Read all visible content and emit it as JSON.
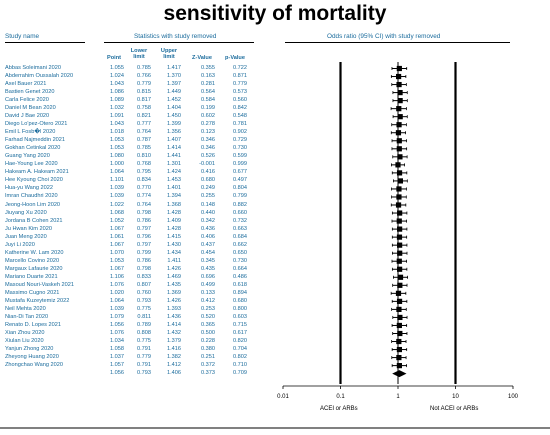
{
  "title": "sensitivity of mortality",
  "headers": {
    "study_name": "Study name",
    "statistics": "Statistics with study removed",
    "odds": "Odds ratio (95% CI) with study removed",
    "point": "Point",
    "lower": "Lower limit",
    "upper": "Upper limit",
    "z": "Z-Value",
    "p": "p-Value"
  },
  "footer": {
    "left_label": "ACEI or ARBs",
    "right_label": "Not ACEI or ARBs"
  },
  "chart_data": {
    "type": "forest",
    "x_scale": "log",
    "x_ticks": [
      "0.01",
      "0.1",
      "1",
      "10",
      "100"
    ],
    "x_tick_values": [
      0.01,
      0.1,
      1,
      10,
      100
    ],
    "xlim": [
      0.01,
      100
    ],
    "studies": [
      {
        "name": "Abbas Soleimani 2020",
        "point": "1.055",
        "lower": "0.785",
        "upper": "1.417",
        "z": "0.355",
        "p": "0.722"
      },
      {
        "name": "Abderrahim Oussalah 2020",
        "point": "1.024",
        "lower": "0.766",
        "upper": "1.370",
        "z": "0.163",
        "p": "0.871"
      },
      {
        "name": "Axel Bauer 2021",
        "point": "1.043",
        "lower": "0.779",
        "upper": "1.397",
        "z": "0.281",
        "p": "0.779"
      },
      {
        "name": "Bastien Genet 2020",
        "point": "1.086",
        "lower": "0.815",
        "upper": "1.449",
        "z": "0.564",
        "p": "0.573"
      },
      {
        "name": "Carla Felice 2020",
        "point": "1.089",
        "lower": "0.817",
        "upper": "1.452",
        "z": "0.584",
        "p": "0.560"
      },
      {
        "name": "Daniel M Bean 2020",
        "point": "1.032",
        "lower": "0.758",
        "upper": "1.404",
        "z": "0.199",
        "p": "0.842"
      },
      {
        "name": "David J Bae 2020",
        "point": "1.091",
        "lower": "0.821",
        "upper": "1.450",
        "z": "0.602",
        "p": "0.548"
      },
      {
        "name": "Diego Lo'pez-Otero 2021",
        "point": "1.043",
        "lower": "0.777",
        "upper": "1.399",
        "z": "0.278",
        "p": "0.781"
      },
      {
        "name": "Emil L Fosb�l 2020",
        "point": "1.018",
        "lower": "0.764",
        "upper": "1.356",
        "z": "0.123",
        "p": "0.902"
      },
      {
        "name": "Farhad Najmeddin 2021",
        "point": "1.053",
        "lower": "0.787",
        "upper": "1.407",
        "z": "0.346",
        "p": "0.729"
      },
      {
        "name": "Gokhan Cetinkal 2020",
        "point": "1.053",
        "lower": "0.785",
        "upper": "1.414",
        "z": "0.346",
        "p": "0.730"
      },
      {
        "name": "Guang Yang 2020",
        "point": "1.080",
        "lower": "0.810",
        "upper": "1.441",
        "z": "0.526",
        "p": "0.599"
      },
      {
        "name": "Hae-Young Lee 2020",
        "point": "1.000",
        "lower": "0.768",
        "upper": "1.301",
        "z": "-0.001",
        "p": "0.999"
      },
      {
        "name": "Hakeam A. Hakeam 2021",
        "point": "1.064",
        "lower": "0.795",
        "upper": "1.424",
        "z": "0.416",
        "p": "0.677"
      },
      {
        "name": "Hee Kyoung Choi 2020",
        "point": "1.101",
        "lower": "0.834",
        "upper": "1.453",
        "z": "0.680",
        "p": "0.497"
      },
      {
        "name": "Hua-yu Wang 2022",
        "point": "1.039",
        "lower": "0.770",
        "upper": "1.401",
        "z": "0.249",
        "p": "0.804"
      },
      {
        "name": "Imran Chaudhri 2020",
        "point": "1.039",
        "lower": "0.774",
        "upper": "1.394",
        "z": "0.255",
        "p": "0.799"
      },
      {
        "name": "Jeong-Hoon Lim 2020",
        "point": "1.022",
        "lower": "0.764",
        "upper": "1.368",
        "z": "0.148",
        "p": "0.882"
      },
      {
        "name": "Jiuyang Xu 2020",
        "point": "1.068",
        "lower": "0.798",
        "upper": "1.428",
        "z": "0.440",
        "p": "0.660"
      },
      {
        "name": "Jordana B Cohen 2021",
        "point": "1.052",
        "lower": "0.786",
        "upper": "1.409",
        "z": "0.342",
        "p": "0.732"
      },
      {
        "name": "Ju Hwan Kim 2020",
        "point": "1.067",
        "lower": "0.797",
        "upper": "1.428",
        "z": "0.436",
        "p": "0.663"
      },
      {
        "name": "Juan Meng 2020",
        "point": "1.061",
        "lower": "0.796",
        "upper": "1.415",
        "z": "0.406",
        "p": "0.684"
      },
      {
        "name": "Juyi Li 2020",
        "point": "1.067",
        "lower": "0.797",
        "upper": "1.430",
        "z": "0.437",
        "p": "0.662"
      },
      {
        "name": "Katherine W. Lam 2020",
        "point": "1.070",
        "lower": "0.799",
        "upper": "1.434",
        "z": "0.454",
        "p": "0.650"
      },
      {
        "name": "Marcello Covino 2020",
        "point": "1.053",
        "lower": "0.786",
        "upper": "1.411",
        "z": "0.345",
        "p": "0.730"
      },
      {
        "name": "Margaux Lafaurie 2020",
        "point": "1.067",
        "lower": "0.798",
        "upper": "1.426",
        "z": "0.435",
        "p": "0.664"
      },
      {
        "name": "Mariano Duarte 2021",
        "point": "1.106",
        "lower": "0.833",
        "upper": "1.469",
        "z": "0.696",
        "p": "0.486"
      },
      {
        "name": "Masoud Nouri-Vaskeh 2021",
        "point": "1.076",
        "lower": "0.807",
        "upper": "1.435",
        "z": "0.499",
        "p": "0.618"
      },
      {
        "name": "Massimo Cugno 2021",
        "point": "1.020",
        "lower": "0.760",
        "upper": "1.369",
        "z": "0.133",
        "p": "0.894"
      },
      {
        "name": "Mustafa Kuzeytemiz 2022",
        "point": "1.064",
        "lower": "0.793",
        "upper": "1.426",
        "z": "0.412",
        "p": "0.680"
      },
      {
        "name": "Neil Mehta 2020",
        "point": "1.039",
        "lower": "0.775",
        "upper": "1.393",
        "z": "0.253",
        "p": "0.800"
      },
      {
        "name": "Nian-Di Tan 2020",
        "point": "1.079",
        "lower": "0.811",
        "upper": "1.436",
        "z": "0.520",
        "p": "0.603"
      },
      {
        "name": "Renato D. Lopes 2021",
        "point": "1.056",
        "lower": "0.789",
        "upper": "1.414",
        "z": "0.365",
        "p": "0.715"
      },
      {
        "name": "Xian Zhou 2020",
        "point": "1.076",
        "lower": "0.808",
        "upper": "1.432",
        "z": "0.500",
        "p": "0.617"
      },
      {
        "name": "Xiulan Liu 2020",
        "point": "1.034",
        "lower": "0.775",
        "upper": "1.379",
        "z": "0.228",
        "p": "0.820"
      },
      {
        "name": "Yanjun Zhong 2020",
        "point": "1.058",
        "lower": "0.791",
        "upper": "1.416",
        "z": "0.380",
        "p": "0.704"
      },
      {
        "name": "Zheyong Huang 2020",
        "point": "1.037",
        "lower": "0.779",
        "upper": "1.382",
        "z": "0.251",
        "p": "0.802"
      },
      {
        "name": "Zhongchao Wang 2020",
        "point": "1.057",
        "lower": "0.791",
        "upper": "1.412",
        "z": "0.372",
        "p": "0.710"
      }
    ],
    "overall": {
      "point": "1.056",
      "lower": "0.793",
      "upper": "1.406",
      "z": "0.373",
      "p": "0.709"
    }
  }
}
